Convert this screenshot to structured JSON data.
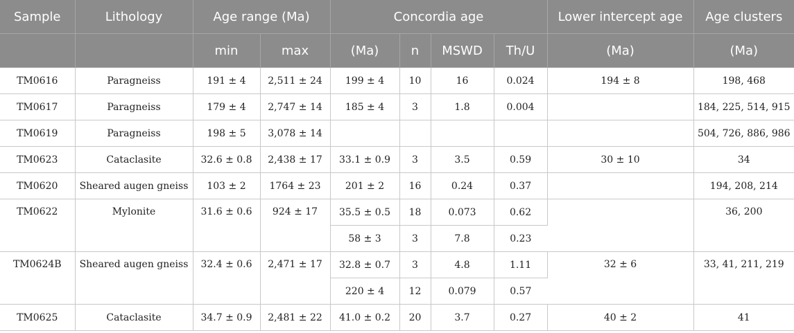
{
  "header": {
    "sample": "Sample",
    "lithology": "Lithology",
    "age_range": "Age range (Ma)",
    "concordia": "Concordia age",
    "lower_intercept": "Lower intercept age",
    "age_clusters": "Age clusters",
    "sub": {
      "min": "min",
      "max": "max",
      "conc_ma": "(Ma)",
      "n": "n",
      "mswd": "MSWD",
      "thu": "Th/U",
      "lower_ma": "(Ma)",
      "clusters_ma": "(Ma)"
    }
  },
  "rows": [
    {
      "sample": "TM0616",
      "lithology": "Paragneiss",
      "min": "191 ± 4",
      "max": "2,511 ± 24",
      "conc": [
        {
          "age": "199 ± 4",
          "n": "10",
          "mswd": "16",
          "thu": "0.024"
        }
      ],
      "lower": "194 ± 8",
      "clusters": "198, 468"
    },
    {
      "sample": "TM0617",
      "lithology": "Paragneiss",
      "min": "179 ± 4",
      "max": "2,747 ± 14",
      "conc": [
        {
          "age": "185 ± 4",
          "n": "3",
          "mswd": "1.8",
          "thu": "0.004"
        }
      ],
      "lower": "",
      "clusters": "184, 225, 514, 915"
    },
    {
      "sample": "TM0619",
      "lithology": "Paragneiss",
      "min": "198 ± 5",
      "max": "3,078 ± 14",
      "conc": [
        {
          "age": "",
          "n": "",
          "mswd": "",
          "thu": ""
        }
      ],
      "lower": "",
      "clusters": "504, 726, 886, 986"
    },
    {
      "sample": "TM0623",
      "lithology": "Cataclasite",
      "min": "32.6 ± 0.8",
      "max": "2,438 ± 17",
      "conc": [
        {
          "age": "33.1 ± 0.9",
          "n": "3",
          "mswd": "3.5",
          "thu": "0.59"
        }
      ],
      "lower": "30 ± 10",
      "clusters": "34"
    },
    {
      "sample": "TM0620",
      "lithology": "Sheared augen gneiss",
      "min": "103 ± 2",
      "max": "1764 ± 23",
      "conc": [
        {
          "age": "201 ± 2",
          "n": "16",
          "mswd": "0.24",
          "thu": "0.37"
        }
      ],
      "lower": "",
      "clusters": "194, 208, 214"
    },
    {
      "sample": "TM0622",
      "lithology": "Mylonite",
      "min": "31.6 ± 0.6",
      "max": "924 ± 17",
      "conc": [
        {
          "age": "35.5 ± 0.5",
          "n": "18",
          "mswd": "0.073",
          "thu": "0.62"
        },
        {
          "age": "58 ± 3",
          "n": "3",
          "mswd": "7.8",
          "thu": "0.23"
        }
      ],
      "lower": "",
      "clusters": "36, 200"
    },
    {
      "sample": "TM0624B",
      "lithology": "Sheared augen gneiss",
      "min": "32.4 ± 0.6",
      "max": "2,471 ± 17",
      "conc": [
        {
          "age": "32.8 ± 0.7",
          "n": "3",
          "mswd": "4.8",
          "thu": "1.11"
        },
        {
          "age": "220 ± 4",
          "n": "12",
          "mswd": "0.079",
          "thu": "0.57"
        }
      ],
      "lower": "32 ± 6",
      "clusters": "33, 41, 211, 219"
    },
    {
      "sample": "TM0625",
      "lithology": "Cataclasite",
      "min": "34.7 ± 0.9",
      "max": "2,481 ± 22",
      "conc": [
        {
          "age": "41.0 ± 0.2",
          "n": "20",
          "mswd": "3.7",
          "thu": "0.27"
        }
      ],
      "lower": "40 ± 2",
      "clusters": "41"
    }
  ]
}
